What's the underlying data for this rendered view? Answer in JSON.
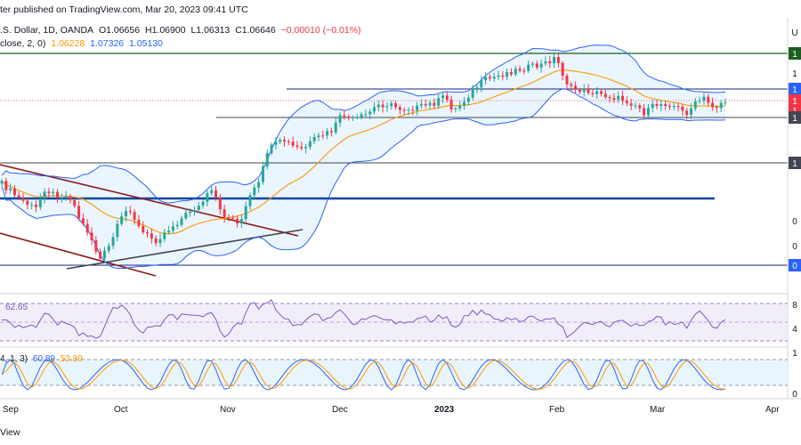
{
  "header": {
    "line1": "ter published on TradingView.com, Mar 20, 2023 09:41 UTC",
    "symbol": ".S. Dollar, 1D, OANDA",
    "o": "O1.06656",
    "h": "H1.06900",
    "l": "L1.06313",
    "c": "C1.06646",
    "chg": "−0.00010 (−0.01%)",
    "bb_label": "close, 2, 0)",
    "bb_basis": "1.06228",
    "bb_upper": "1.07326",
    "bb_lower": "1.05130"
  },
  "rsi_label": "62.65",
  "stoch_label": "4, 1, 3)",
  "stoch_k": "60.89",
  "stoch_d": "53.89",
  "footer": "View",
  "colors": {
    "up": "#26a69a",
    "down": "#f23645",
    "bb": "#2962ff",
    "basis": "#ff9800",
    "rsi": "#7e57c2",
    "channel": "#8b1a1a",
    "trend": "#434651"
  },
  "chart_data": {
    "type": "candlestick",
    "x": [
      "Sep",
      "Oct",
      "Nov",
      "Dec",
      "2023",
      "Feb",
      "Mar",
      "Apr"
    ],
    "right_axis_visible": [
      "U",
      "1",
      "1",
      "1",
      "1",
      "1",
      "1",
      "1",
      "0",
      "0",
      "0",
      "8",
      "4",
      "1",
      "0"
    ],
    "indicators": [
      "Bollinger Bands",
      "RSI",
      "Stochastic RSI"
    ]
  }
}
